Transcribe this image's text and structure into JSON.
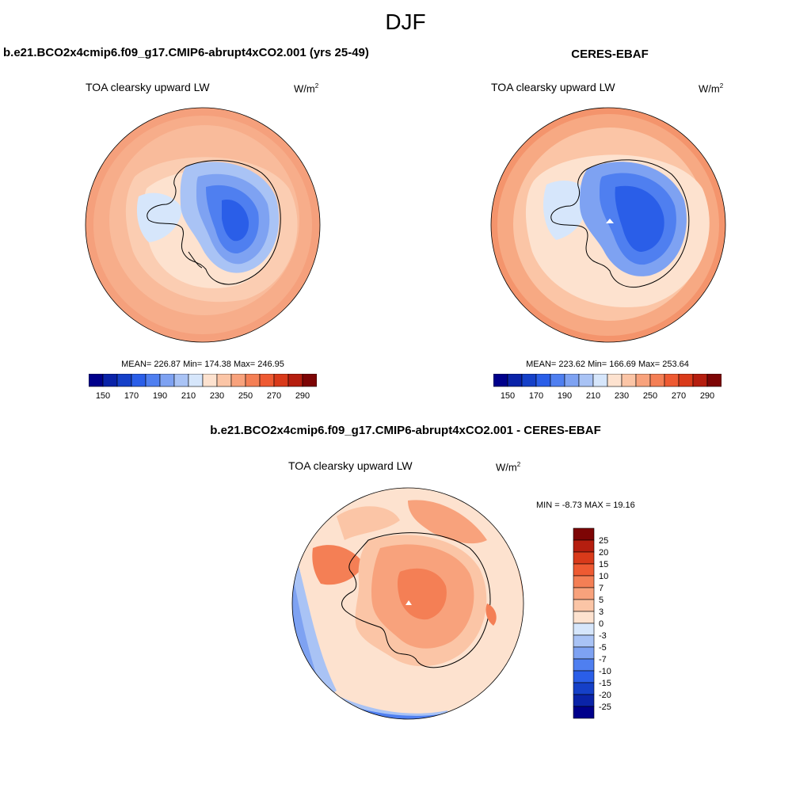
{
  "page_title": "DJF",
  "units": {
    "base": "W/m",
    "exp": "2"
  },
  "panels": {
    "model": {
      "title": "b.e21.BCO2x4cmip6.f09_g17.CMIP6-abrupt4xCO2.001 (yrs 25-49)",
      "variable": "TOA clearsky upward LW",
      "stats": "MEAN= 226.87  Min= 174.38  Max= 246.95"
    },
    "obs": {
      "title": "CERES-EBAF",
      "variable": "TOA clearsky upward LW",
      "stats": "MEAN= 223.62  Min= 166.69  Max= 253.64"
    },
    "diff": {
      "title": "b.e21.BCO2x4cmip6.f09_g17.CMIP6-abrupt4xCO2.001 - CERES-EBAF",
      "variable": "TOA clearsky upward LW",
      "stats": "MIN =  -8.73 MAX =  19.16"
    }
  },
  "colorbar_abs": {
    "tick_labels": [
      "150",
      "170",
      "190",
      "210",
      "230",
      "250",
      "270",
      "290"
    ],
    "colors": [
      "#00008b",
      "#0a23a8",
      "#1540c8",
      "#2a5ee8",
      "#4f7ff0",
      "#7ea2f2",
      "#a9c3f5",
      "#d6e6fb",
      "#fde2cf",
      "#fbc5a6",
      "#f8a27c",
      "#f47f55",
      "#ee5a32",
      "#d93a1a",
      "#b51e0f",
      "#7d0505"
    ]
  },
  "colorbar_diff": {
    "tick_labels": [
      "25",
      "20",
      "15",
      "10",
      "7",
      "5",
      "3",
      "0",
      "-3",
      "-5",
      "-7",
      "-10",
      "-15",
      "-20",
      "-25"
    ],
    "colors": [
      "#7d0505",
      "#b51e0f",
      "#d93a1a",
      "#ee5a32",
      "#f47f55",
      "#f8a27c",
      "#fbc5a6",
      "#fde2cf",
      "#d6e6fb",
      "#a9c3f5",
      "#7ea2f2",
      "#4f7ff0",
      "#2a5ee8",
      "#1540c8",
      "#0a23a8",
      "#00008b"
    ]
  }
}
